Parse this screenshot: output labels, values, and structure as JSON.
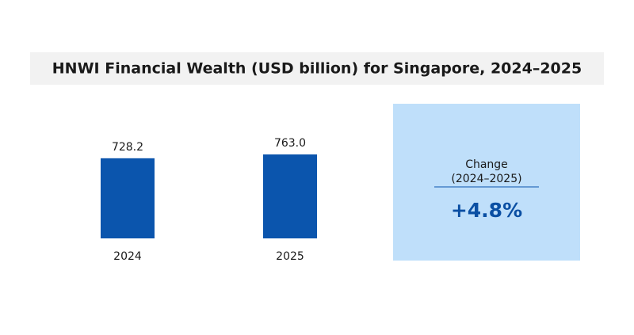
{
  "chart_data": {
    "type": "bar",
    "title": "HNWI Financial Wealth (USD billion) for Singapore, 2024–2025",
    "categories": [
      "2024",
      "2025"
    ],
    "values": [
      728.2,
      763.0
    ],
    "value_labels": [
      "728.2",
      "763.0"
    ],
    "color": "#0b55ad",
    "change_label": "Change",
    "change_period": "(2024–2025)",
    "change_value": "+4.8%",
    "panel_color": "#bfdffa"
  }
}
